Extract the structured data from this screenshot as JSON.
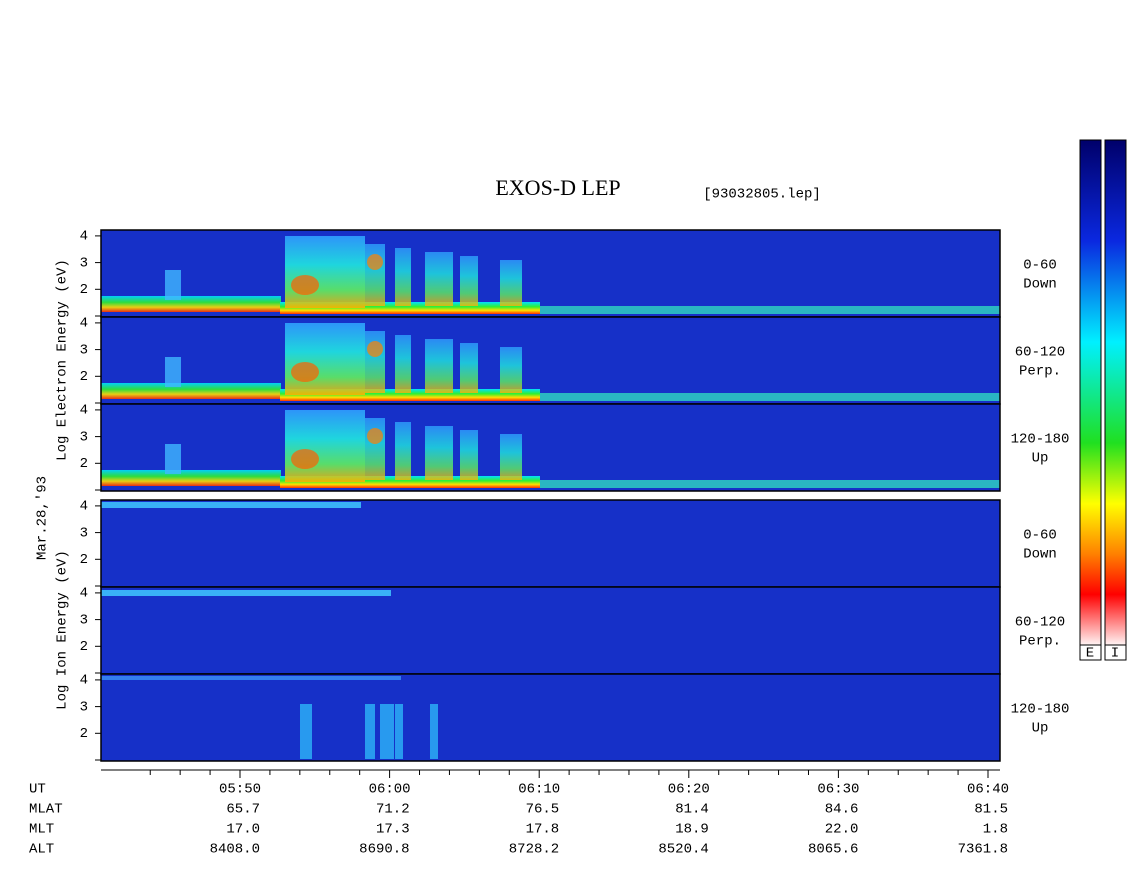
{
  "header": {
    "title": "EXOS-D LEP",
    "file": "[93032805.lep]"
  },
  "date": "Mar.28,'93",
  "groups": [
    {
      "axis_label": "Log  Electron  Energy (eV)",
      "panels": [
        {
          "label": [
            "0-60",
            "Down"
          ]
        },
        {
          "label": [
            "60-120",
            "Perp."
          ]
        },
        {
          "label": [
            "120-180",
            "Up"
          ]
        }
      ]
    },
    {
      "axis_label": "Log  Ion  Energy (eV)",
      "panels": [
        {
          "label": [
            "0-60",
            "Down"
          ]
        },
        {
          "label": [
            "60-120",
            "Perp."
          ]
        },
        {
          "label": [
            "120-180",
            "Up"
          ]
        }
      ]
    }
  ],
  "y_tick_labels": [
    "2",
    "3",
    "4"
  ],
  "colorbar_labels": [
    "E",
    "I"
  ],
  "ephemeris": {
    "rows": [
      {
        "name": "UT",
        "values": [
          "05:50",
          "06:00",
          "06:10",
          "06:20",
          "06:30",
          "06:40"
        ]
      },
      {
        "name": "MLAT",
        "values": [
          "65.7",
          "71.2",
          "76.5",
          "81.4",
          "84.6",
          "81.5"
        ]
      },
      {
        "name": "MLT",
        "values": [
          "17.0",
          "17.3",
          "17.8",
          "18.9",
          "22.0",
          "1.8"
        ]
      },
      {
        "name": "ALT",
        "values": [
          "8408.0",
          "8690.8",
          "8728.2",
          "8520.4",
          "8065.6",
          "7361.8"
        ]
      }
    ]
  }
}
